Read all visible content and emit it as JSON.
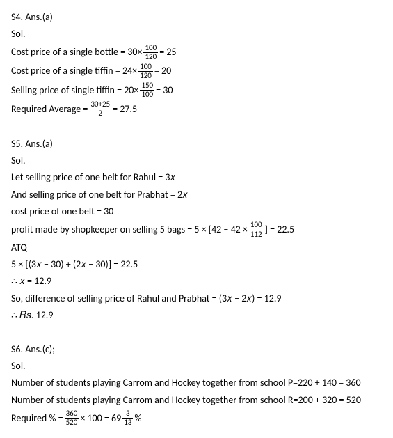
{
  "s4": {
    "header": "S4. Ans.(a)",
    "sol": "Sol.",
    "l1a": "Cost price of a single bottle = 30×",
    "l1_num": "100",
    "l1_den": "120",
    "l1b": "= 25",
    "l2a": "Cost price of a single tiffin = 24×",
    "l2_num": "100",
    "l2_den": "120",
    "l2b": "= 20",
    "l3a": "Selling price of single tiffin = 20×",
    "l3_num": "150",
    "l3_den": "100",
    "l3b": "= 30",
    "l4a": "Required Average =",
    "l4_num": "30+25",
    "l4_den": "2",
    "l4b": "= 27.5"
  },
  "s5": {
    "header": "S5. Ans.(a)",
    "sol": "Sol.",
    "l1": "Let selling price of one belt for Rahul = 3𝑥",
    "l2": "And selling price of one belt for Prabhat = 2𝑥",
    "l3": "cost price of one belt = 30",
    "l4a": "profit made by shopkeeper on selling 5 bags = 5 ×  [42 − 42 ×",
    "l4_num": "100",
    "l4_den": "112",
    "l4b": "] = 22.5",
    "l5": "ATQ",
    "l6": "5 ×  [(3𝑥 − 30) + (2𝑥 − 30)] = 22.5",
    "l7": " ∴ 𝑥 = 12.9",
    "l8": "So, difference of selling price of Rahul and Prabhat = (3𝑥 − 2𝑥) = 12.9",
    "l9": " ∴ 𝑅𝑠. 12.9"
  },
  "s6": {
    "header": "S6. Ans.(c);",
    "sol": "Sol.",
    "l1": "Number of students playing Carrom and Hockey together from school  P=220 + 140 = 360",
    "l2": "Number of students playing Carrom and Hockey together from school R=200 + 320 = 520",
    "l3a": "Required % =",
    "l3_num1": "360",
    "l3_den1": "520",
    "l3b": "× 100 = 69",
    "l3_num2": "3",
    "l3_den2": "13",
    "l3c": "%"
  }
}
